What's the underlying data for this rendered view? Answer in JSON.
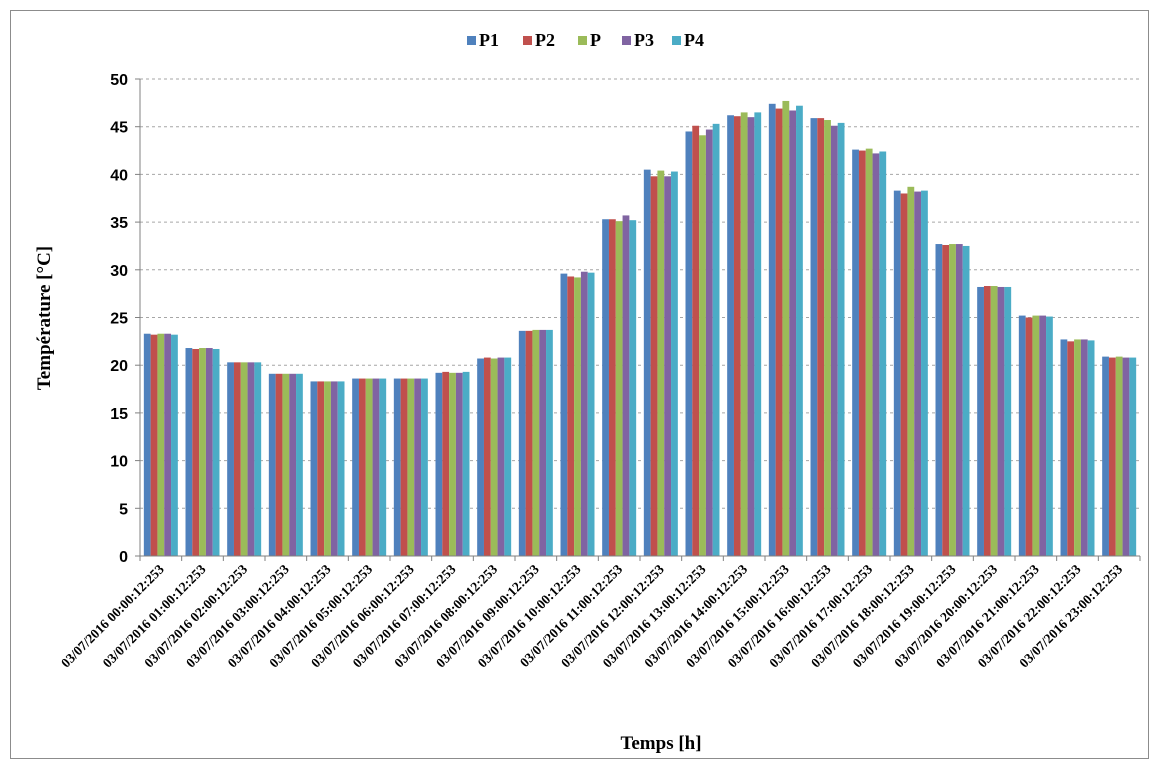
{
  "chart_data": {
    "type": "bar",
    "title": "",
    "xlabel": "Temps  [h]",
    "ylabel": "Température  [°C]",
    "ylim": [
      0,
      50
    ],
    "yticks": [
      0,
      5,
      10,
      15,
      20,
      25,
      30,
      35,
      40,
      45,
      50
    ],
    "grid": "horizontal dashed",
    "legend_position": "top",
    "categories": [
      "03/07/2016 00:00:12:253",
      "03/07/2016 01:00:12:253",
      "03/07/2016 02:00:12:253",
      "03/07/2016 03:00:12:253",
      "03/07/2016 04:00:12:253",
      "03/07/2016 05:00:12:253",
      "03/07/2016 06:00:12:253",
      "03/07/2016 07:00:12:253",
      "03/07/2016 08:00:12:253",
      "03/07/2016 09:00:12:253",
      "03/07/2016 10:00:12:253",
      "03/07/2016 11:00:12:253",
      "03/07/2016 12:00:12:253",
      "03/07/2016 13:00:12:253",
      "03/07/2016 14:00:12:253",
      "03/07/2016 15:00:12:253",
      "03/07/2016 16:00:12:253",
      "03/07/2016 17:00:12:253",
      "03/07/2016 18:00:12:253",
      "03/07/2016 19:00:12:253",
      "03/07/2016 20:00:12:253",
      "03/07/2016 21:00:12:253",
      "03/07/2016 22:00:12:253",
      "03/07/2016 23:00:12:253"
    ],
    "series": [
      {
        "name": "P1",
        "color": "#4f81bd",
        "values": [
          23.3,
          21.8,
          20.3,
          19.1,
          18.3,
          18.6,
          18.6,
          19.2,
          20.7,
          23.6,
          29.6,
          35.3,
          40.5,
          44.5,
          46.2,
          47.4,
          45.9,
          42.6,
          38.3,
          32.7,
          28.2,
          25.2,
          22.7,
          20.9
        ]
      },
      {
        "name": "P2",
        "color": "#c0504d",
        "values": [
          23.2,
          21.7,
          20.3,
          19.1,
          18.3,
          18.6,
          18.6,
          19.3,
          20.8,
          23.6,
          29.3,
          35.3,
          39.8,
          45.1,
          46.1,
          46.9,
          45.9,
          42.5,
          38.0,
          32.6,
          28.3,
          25.0,
          22.5,
          20.8
        ]
      },
      {
        "name": "P",
        "color": "#9bbb59",
        "values": [
          23.3,
          21.8,
          20.3,
          19.1,
          18.3,
          18.6,
          18.6,
          19.2,
          20.7,
          23.7,
          29.2,
          35.1,
          40.4,
          44.1,
          46.5,
          47.7,
          45.7,
          42.7,
          38.7,
          32.7,
          28.3,
          25.2,
          22.7,
          20.9
        ]
      },
      {
        "name": "P3",
        "color": "#8064a2",
        "values": [
          23.3,
          21.8,
          20.3,
          19.1,
          18.3,
          18.6,
          18.6,
          19.2,
          20.8,
          23.7,
          29.8,
          35.7,
          39.8,
          44.7,
          46.0,
          46.7,
          45.1,
          42.2,
          38.2,
          32.7,
          28.2,
          25.2,
          22.7,
          20.8
        ]
      },
      {
        "name": "P4",
        "color": "#4bacc6",
        "values": [
          23.2,
          21.7,
          20.3,
          19.1,
          18.3,
          18.6,
          18.6,
          19.3,
          20.8,
          23.7,
          29.7,
          35.2,
          40.3,
          45.3,
          46.5,
          47.2,
          45.4,
          42.4,
          38.3,
          32.5,
          28.2,
          25.1,
          22.6,
          20.8
        ]
      }
    ]
  }
}
